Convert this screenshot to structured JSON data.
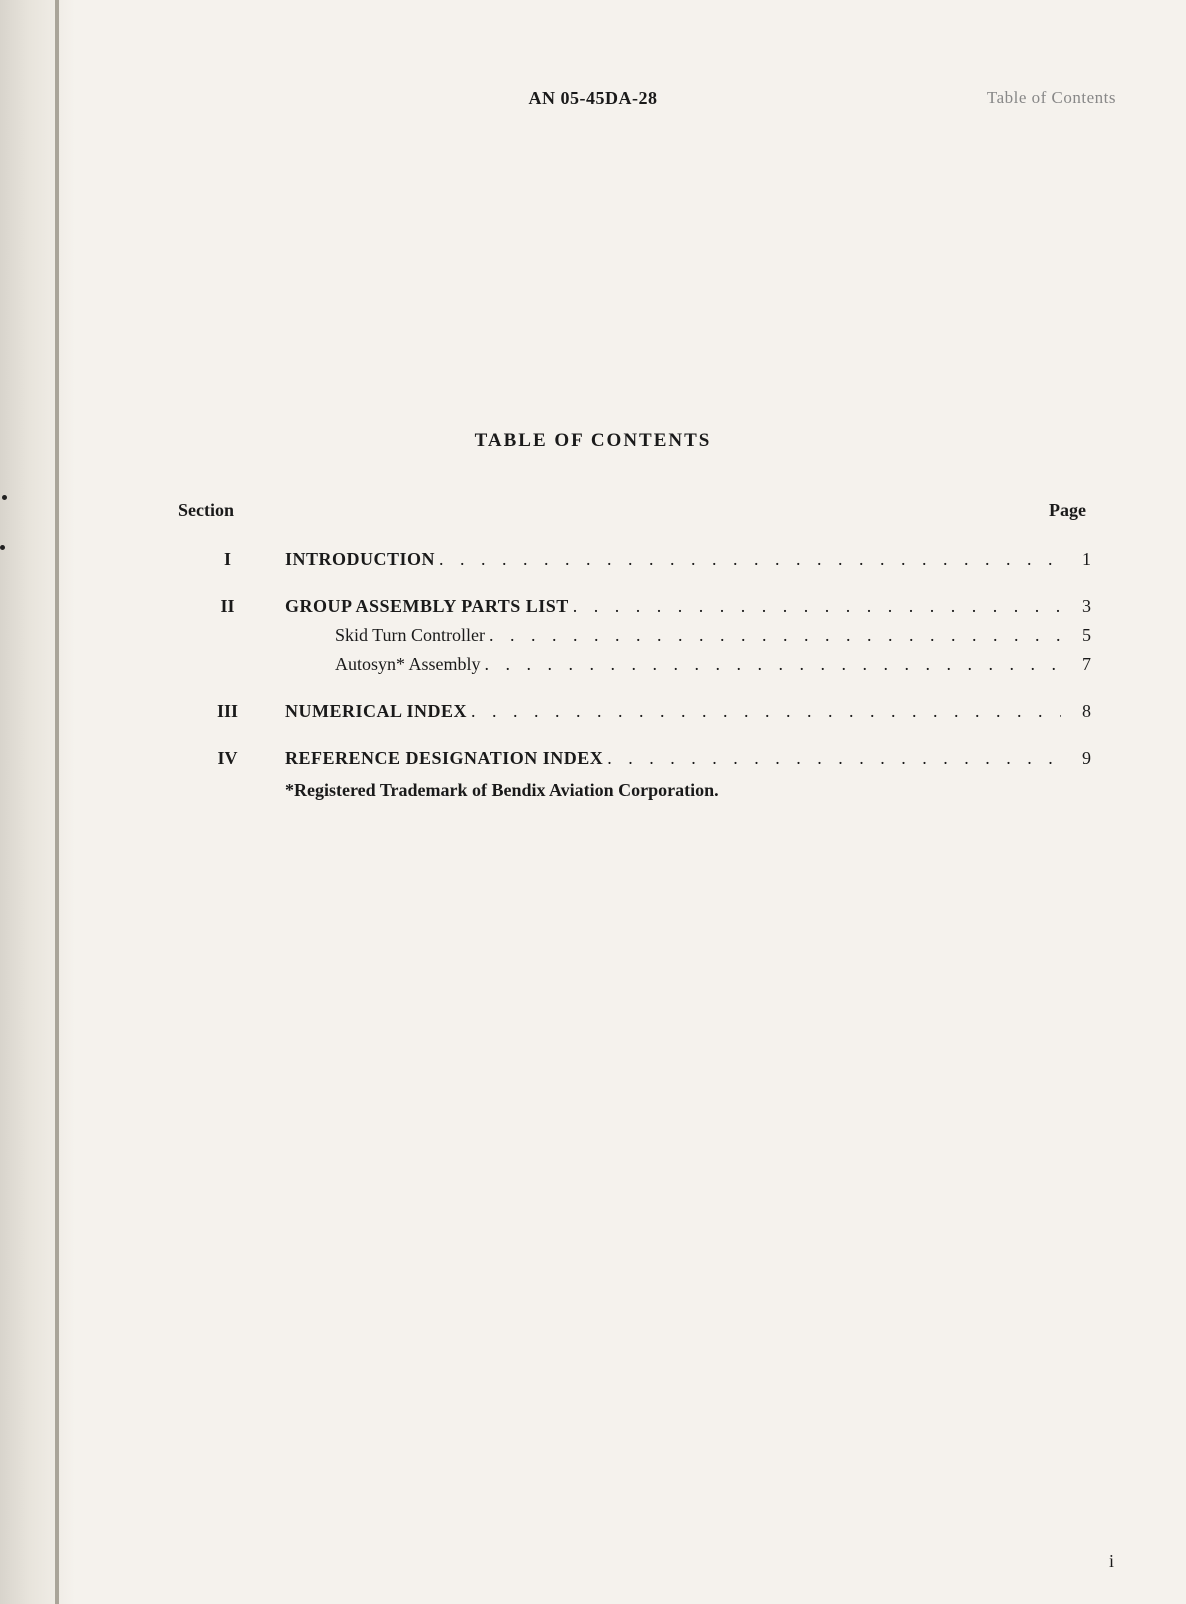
{
  "document_id": "AN 05-45DA-28",
  "header_right": "Table of Contents",
  "title": "TABLE OF CONTENTS",
  "column_headers": {
    "section": "Section",
    "page": "Page"
  },
  "entries": [
    {
      "section": "I",
      "label": "INTRODUCTION",
      "page": "1",
      "bold": true,
      "indent": false,
      "spacer_before": false
    },
    {
      "section": "II",
      "label": "GROUP ASSEMBLY PARTS LIST",
      "page": "3",
      "bold": true,
      "indent": false,
      "spacer_before": true
    },
    {
      "section": "",
      "label": "Skid Turn Controller",
      "page": "5",
      "bold": false,
      "indent": true,
      "spacer_before": false
    },
    {
      "section": "",
      "label": "Autosyn* Assembly",
      "page": "7",
      "bold": false,
      "indent": true,
      "spacer_before": false
    },
    {
      "section": "III",
      "label": "NUMERICAL INDEX",
      "page": "8",
      "bold": true,
      "indent": false,
      "spacer_before": true
    },
    {
      "section": "IV",
      "label": "REFERENCE DESIGNATION INDEX",
      "page": "9",
      "bold": true,
      "indent": false,
      "spacer_before": true
    }
  ],
  "footnote": "*Registered Trademark of Bendix Aviation Corporation.",
  "page_number": "i",
  "colors": {
    "background": "#f5f2ed",
    "text": "#1a1a1a",
    "faded_text": "#888888"
  },
  "typography": {
    "body_fontsize": 18,
    "title_fontsize": 19,
    "font_family": "Times New Roman"
  }
}
